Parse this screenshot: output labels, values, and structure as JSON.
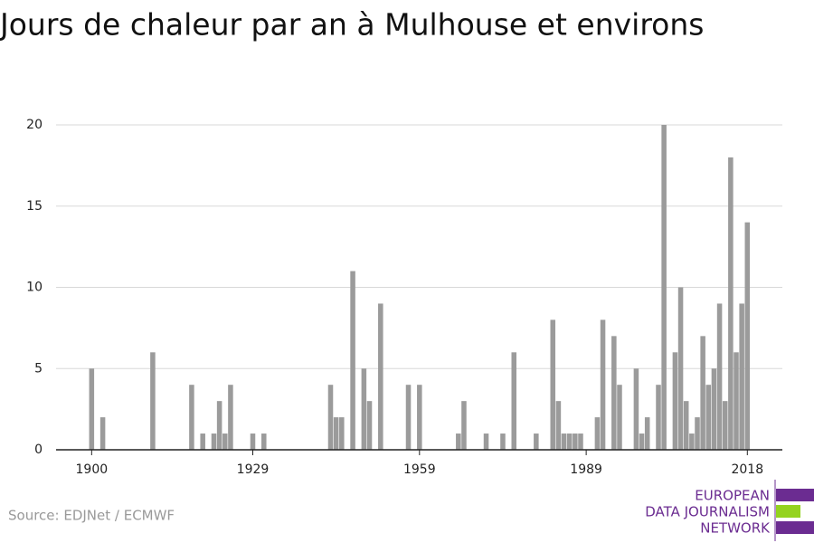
{
  "chart_data": {
    "type": "bar",
    "title": "Jours de chaleur par an à Mulhouse et environs",
    "x": [
      1900,
      1902,
      1911,
      1918,
      1920,
      1922,
      1923,
      1924,
      1925,
      1929,
      1931,
      1943,
      1944,
      1945,
      1947,
      1949,
      1950,
      1952,
      1957,
      1959,
      1966,
      1967,
      1971,
      1974,
      1976,
      1980,
      1983,
      1984,
      1985,
      1986,
      1987,
      1988,
      1991,
      1992,
      1994,
      1995,
      1998,
      1999,
      2000,
      2002,
      2003,
      2005,
      2006,
      2007,
      2008,
      2009,
      2010,
      2011,
      2012,
      2013,
      2014,
      2015,
      2016,
      2017,
      2018
    ],
    "values": [
      5,
      2,
      6,
      4,
      1,
      1,
      3,
      1,
      4,
      1,
      1,
      4,
      2,
      2,
      11,
      5,
      3,
      9,
      4,
      4,
      1,
      3,
      1,
      1,
      6,
      1,
      8,
      3,
      1,
      1,
      1,
      1,
      2,
      8,
      7,
      4,
      5,
      1,
      2,
      4,
      20,
      6,
      10,
      3,
      1,
      2,
      7,
      4,
      5,
      9,
      3,
      18,
      6,
      9,
      14
    ],
    "color": "#9b9b9b",
    "xlim": [
      1893.6,
      2024.3
    ],
    "xticks": [
      1900,
      1929,
      1959,
      1989,
      2018
    ],
    "ylim": [
      0,
      20
    ],
    "yticks": [
      0,
      5,
      10,
      15,
      20
    ],
    "grid": true
  },
  "source": "Source: EDJNet / ECMWF",
  "logo": [
    "EUROPEAN",
    "DATA JOURNALISM",
    "NETWORK"
  ]
}
